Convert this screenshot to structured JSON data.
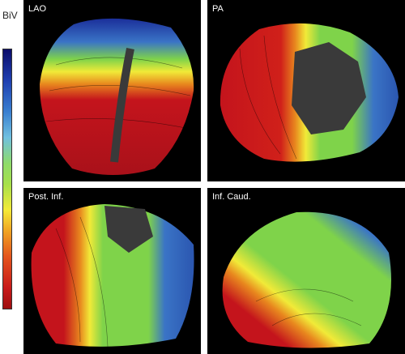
{
  "legend": {
    "title": "BiV"
  },
  "panels": [
    {
      "label": "LAO"
    },
    {
      "label": "PA"
    },
    {
      "label": "Post. Inf."
    },
    {
      "label": "Inf. Caud."
    }
  ],
  "colors": {
    "early": "#c4141c",
    "mid_early": "#e8871e",
    "mid": "#f1ea38",
    "mid_late": "#7fd34a",
    "late": "#3a74c6",
    "latest": "#1b2f9a",
    "scar": "#3a3a3a"
  }
}
